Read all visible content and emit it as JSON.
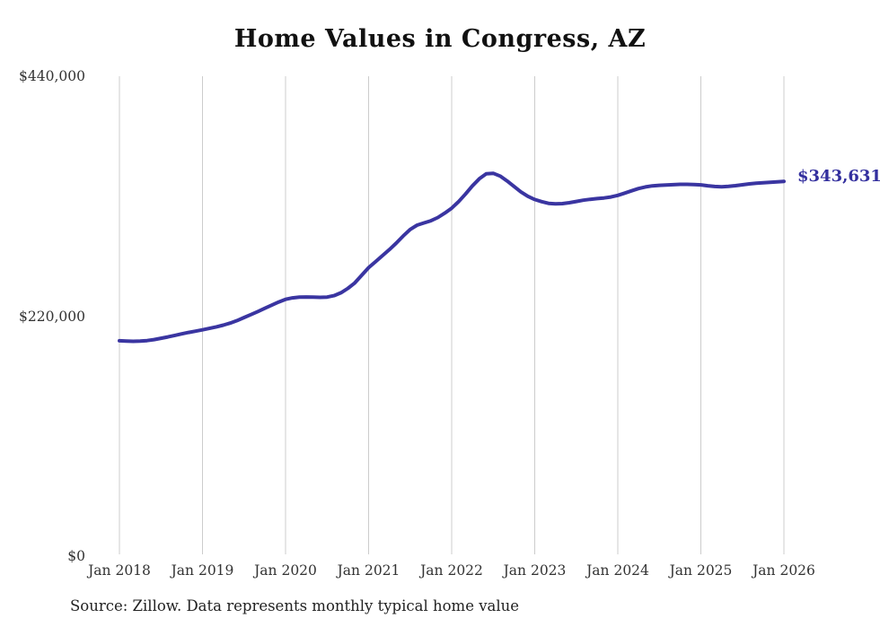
{
  "page": {
    "title": "Home Values in Congress, AZ",
    "source_note": "Source: Zillow. Data represents monthly typical home value",
    "end_label": "$343,631"
  },
  "colors": {
    "line": "#3a35a1",
    "end_label": "#332f9e",
    "grid": "#cccccc",
    "axis_text": "#333333",
    "title_text": "#111111",
    "background": "#ffffff"
  },
  "chart_data": {
    "type": "line",
    "title": "Home Values in Congress, AZ",
    "xlabel": "",
    "ylabel": "",
    "x_unit": "month",
    "x_tick_labels": [
      "Jan 2018",
      "Jan 2019",
      "Jan 2020",
      "Jan 2021",
      "Jan 2022",
      "Jan 2023",
      "Jan 2024",
      "Jan 2025",
      "Jan 2026"
    ],
    "y_ticks": [
      {
        "label": "$0",
        "value": 0
      },
      {
        "label": "$220,000",
        "value": 220000
      },
      {
        "label": "$440,000",
        "value": 440000
      }
    ],
    "ylim": [
      0,
      440000
    ],
    "grid": "vertical-only",
    "legend": "none",
    "series": [
      {
        "name": "Monthly typical home value",
        "monthly_from": "2018-01",
        "monthly_to": "2026-01",
        "values": [
          197500,
          197200,
          197000,
          197100,
          197600,
          198500,
          199800,
          201000,
          202400,
          203800,
          205100,
          206300,
          207500,
          208800,
          210200,
          211800,
          213700,
          216000,
          218800,
          221500,
          224300,
          227200,
          230100,
          233000,
          235500,
          236800,
          237400,
          237600,
          237500,
          237300,
          237500,
          238800,
          241500,
          245500,
          250500,
          257500,
          264500,
          270000,
          275500,
          281000,
          287000,
          293500,
          299500,
          303500,
          305500,
          307500,
          310500,
          314500,
          319000,
          325000,
          332000,
          339500,
          346000,
          350500,
          351000,
          348500,
          344000,
          339000,
          334000,
          330000,
          327000,
          325000,
          323500,
          323000,
          323200,
          324000,
          325200,
          326300,
          327200,
          327800,
          328400,
          329300,
          330800,
          332800,
          335000,
          337000,
          338500,
          339500,
          340000,
          340300,
          340600,
          340900,
          340900,
          340700,
          340400,
          339600,
          338900,
          338700,
          339000,
          339700,
          340500,
          341300,
          341900,
          342300,
          342700,
          343200,
          343631
        ]
      }
    ],
    "end_value": 343631,
    "end_value_label": "$343,631"
  }
}
